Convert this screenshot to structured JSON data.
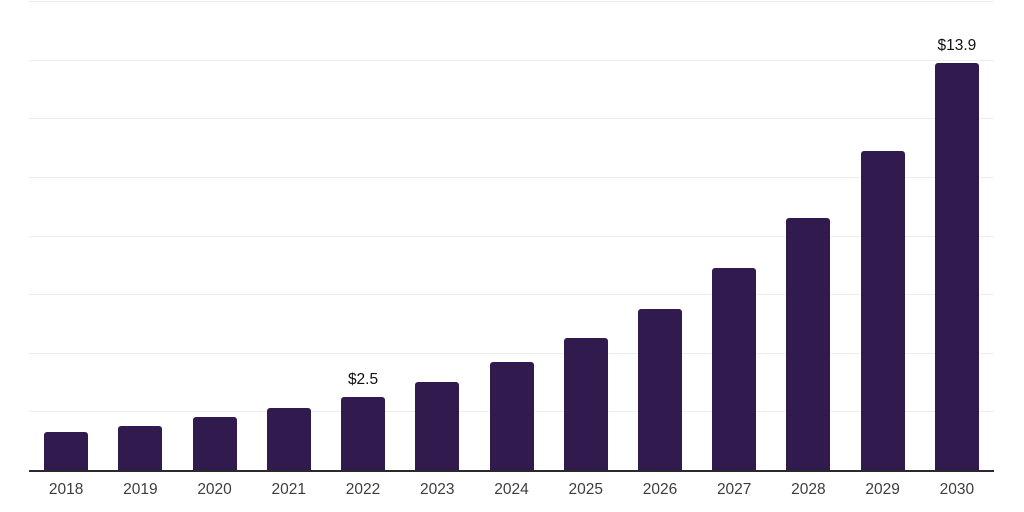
{
  "chart_data": {
    "type": "bar",
    "title": "",
    "xlabel": "",
    "ylabel": "",
    "categories": [
      "2018",
      "2019",
      "2020",
      "2021",
      "2022",
      "2023",
      "2024",
      "2025",
      "2026",
      "2027",
      "2028",
      "2029",
      "2030"
    ],
    "values": [
      1.3,
      1.5,
      1.8,
      2.1,
      2.5,
      3.0,
      3.7,
      4.5,
      5.5,
      6.9,
      8.6,
      10.9,
      13.9
    ],
    "value_labels": [
      "",
      "",
      "",
      "",
      "$2.5",
      "",
      "",
      "",
      "",
      "",
      "",
      "",
      "$13.9"
    ],
    "ylim": [
      0,
      16
    ],
    "grid_step": 2,
    "grid": true,
    "legend": false,
    "y_axis_tick_labels_shown": false,
    "colors": {
      "bar": "#311a4d",
      "axis_line": "#2a2a2a",
      "gridline": "#ededed",
      "tick_label": "#3d3d3d",
      "value_label": "#111111",
      "background": "#ffffff"
    }
  }
}
